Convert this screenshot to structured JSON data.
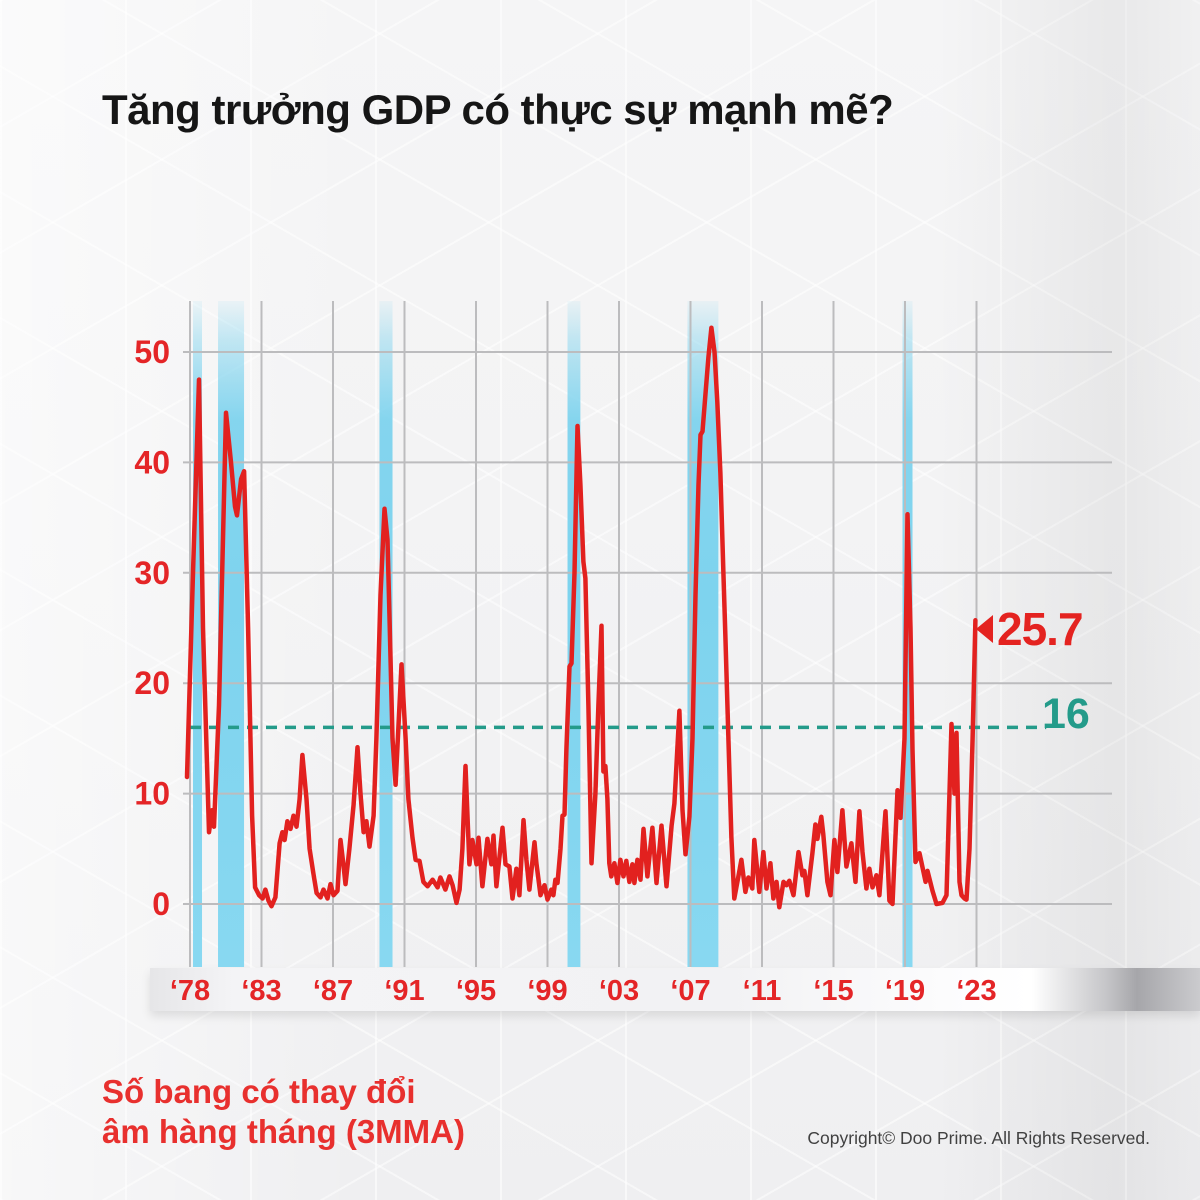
{
  "header": {
    "title": "Tăng trưởng GDP có thực sự mạnh mẽ?"
  },
  "footer": {
    "subtitle_line1": "Số bang có thay đổi",
    "subtitle_line2": "âm hàng tháng (3MMA)",
    "copyright": "Copyright© Doo Prime. All Rights Reserved."
  },
  "colors": {
    "line": "#e2211f",
    "axis_label_red": "#e42527",
    "recession_band_blue": "#7ed3ee",
    "threshold_teal": "#249b8a",
    "gridline_gray": "#bcbcbe",
    "title_black": "#161616",
    "background": "#f2f2f3"
  },
  "chart_data": {
    "type": "line",
    "title": "Tăng trưởng GDP có thực sự mạnh mẽ?",
    "series_label": "Số bang có thay đổi âm hàng tháng (3MMA)",
    "xlabel": "",
    "ylabel": "",
    "grid": true,
    "yticks": [
      0,
      10,
      20,
      30,
      40,
      50
    ],
    "ylim": [
      -5.7,
      54.6
    ],
    "x_ticks": [
      {
        "label": "‘78",
        "year": 1978
      },
      {
        "label": "‘83",
        "year": 1983
      },
      {
        "label": "‘87",
        "year": 1987
      },
      {
        "label": "‘91",
        "year": 1991
      },
      {
        "label": "‘95",
        "year": 1995
      },
      {
        "label": "‘99",
        "year": 1999
      },
      {
        "label": "‘03",
        "year": 2003
      },
      {
        "label": "‘07",
        "year": 2007
      },
      {
        "label": "‘11",
        "year": 2011
      },
      {
        "label": "‘15",
        "year": 2015
      },
      {
        "label": "‘19",
        "year": 2019
      },
      {
        "label": "‘23",
        "year": 2023
      }
    ],
    "threshold": {
      "value": 16,
      "label": "16",
      "line_end_year": 2026.9
    },
    "end_label": {
      "value": 25.7,
      "text": "25.7"
    },
    "recession_bands": [
      [
        1978.21,
        1978.84
      ],
      [
        1979.96,
        1981.78
      ],
      [
        1989.6,
        1990.33
      ],
      [
        2000.12,
        2000.84
      ],
      [
        2006.83,
        2008.56
      ],
      [
        2018.86,
        2019.42
      ]
    ],
    "points": [
      [
        1977.79,
        11.5
      ],
      [
        1978.21,
        30
      ],
      [
        1978.63,
        47.5
      ],
      [
        1978.91,
        25
      ],
      [
        1979.33,
        6.5
      ],
      [
        1979.54,
        8.5
      ],
      [
        1979.68,
        7.0
      ],
      [
        1980.03,
        18
      ],
      [
        1980.52,
        44.5
      ],
      [
        1980.87,
        40
      ],
      [
        1981.15,
        36
      ],
      [
        1981.29,
        35.2
      ],
      [
        1981.57,
        38.5
      ],
      [
        1981.78,
        39.2
      ],
      [
        1982.06,
        25
      ],
      [
        1982.34,
        8
      ],
      [
        1982.55,
        1.5
      ],
      [
        1982.83,
        0.8
      ],
      [
        1983.06,
        0.5
      ],
      [
        1983.22,
        1.3
      ],
      [
        1983.39,
        0.3
      ],
      [
        1983.56,
        -0.2
      ],
      [
        1983.78,
        0.6
      ],
      [
        1984.01,
        5.5
      ],
      [
        1984.17,
        6.5
      ],
      [
        1984.29,
        5.8
      ],
      [
        1984.45,
        7.5
      ],
      [
        1984.62,
        6.8
      ],
      [
        1984.79,
        8.0
      ],
      [
        1984.96,
        7.0
      ],
      [
        1985.13,
        9.5
      ],
      [
        1985.29,
        13.5
      ],
      [
        1985.52,
        9.5
      ],
      [
        1985.69,
        5.0
      ],
      [
        1985.91,
        2.7
      ],
      [
        1986.08,
        1.0
      ],
      [
        1986.3,
        0.6
      ],
      [
        1986.47,
        1.3
      ],
      [
        1986.69,
        0.5
      ],
      [
        1986.86,
        1.8
      ],
      [
        1987.03,
        0.8
      ],
      [
        1987.25,
        1.2
      ],
      [
        1987.42,
        5.8
      ],
      [
        1987.59,
        3.5
      ],
      [
        1987.7,
        1.8
      ],
      [
        1987.92,
        5.0
      ],
      [
        1988.15,
        9.0
      ],
      [
        1988.37,
        14.2
      ],
      [
        1988.54,
        10.0
      ],
      [
        1988.71,
        6.5
      ],
      [
        1988.87,
        7.5
      ],
      [
        1989.04,
        5.2
      ],
      [
        1989.27,
        8.0
      ],
      [
        1989.43,
        15.0
      ],
      [
        1989.66,
        28.0
      ],
      [
        1989.88,
        35.8
      ],
      [
        1990.05,
        33.0
      ],
      [
        1990.16,
        26.0
      ],
      [
        1990.33,
        15.0
      ],
      [
        1990.5,
        10.8
      ],
      [
        1990.66,
        16.0
      ],
      [
        1990.83,
        21.7
      ],
      [
        1991.06,
        15.0
      ],
      [
        1991.22,
        9.5
      ],
      [
        1991.45,
        6.0
      ],
      [
        1991.62,
        4.0
      ],
      [
        1991.84,
        3.9
      ],
      [
        1992.06,
        2.0
      ],
      [
        1992.29,
        1.6
      ],
      [
        1992.57,
        2.2
      ],
      [
        1992.85,
        1.5
      ],
      [
        1993.01,
        2.4
      ],
      [
        1993.29,
        1.3
      ],
      [
        1993.52,
        2.5
      ],
      [
        1993.69,
        1.7
      ],
      [
        1993.91,
        0.1
      ],
      [
        1994.08,
        1.3
      ],
      [
        1994.24,
        5.0
      ],
      [
        1994.41,
        12.5
      ],
      [
        1994.63,
        3.6
      ],
      [
        1994.8,
        5.8
      ],
      [
        1995.03,
        3.6
      ],
      [
        1995.14,
        6.0
      ],
      [
        1995.36,
        1.6
      ],
      [
        1995.64,
        5.9
      ],
      [
        1995.86,
        3.6
      ],
      [
        1995.98,
        6.2
      ],
      [
        1996.14,
        1.6
      ],
      [
        1996.48,
        6.9
      ],
      [
        1996.65,
        3.6
      ],
      [
        1996.87,
        3.4
      ],
      [
        1997.04,
        0.5
      ],
      [
        1997.26,
        3.2
      ],
      [
        1997.43,
        0.8
      ],
      [
        1997.66,
        7.6
      ],
      [
        1997.82,
        4.0
      ],
      [
        1997.99,
        1.3
      ],
      [
        1998.27,
        5.6
      ],
      [
        1998.38,
        3.7
      ],
      [
        1998.61,
        0.8
      ],
      [
        1998.83,
        1.7
      ],
      [
        1999.0,
        0.4
      ],
      [
        1999.22,
        1.3
      ],
      [
        1999.33,
        0.8
      ],
      [
        1999.44,
        2.2
      ],
      [
        1999.56,
        1.9
      ],
      [
        1999.73,
        5.0
      ],
      [
        1999.84,
        8.0
      ],
      [
        1999.95,
        8.1
      ],
      [
        2000.06,
        14.0
      ],
      [
        2000.23,
        21.5
      ],
      [
        2000.34,
        21.8
      ],
      [
        2000.51,
        30.0
      ],
      [
        2000.68,
        43.3
      ],
      [
        2000.84,
        38.0
      ],
      [
        2001.01,
        31.0
      ],
      [
        2001.12,
        29.5
      ],
      [
        2001.29,
        18.0
      ],
      [
        2001.46,
        3.7
      ],
      [
        2001.68,
        10.0
      ],
      [
        2001.85,
        18.0
      ],
      [
        2002.02,
        25.2
      ],
      [
        2002.13,
        12.0
      ],
      [
        2002.24,
        12.5
      ],
      [
        2002.35,
        9.5
      ],
      [
        2002.46,
        3.7
      ],
      [
        2002.57,
        2.5
      ],
      [
        2002.74,
        3.7
      ],
      [
        2002.91,
        1.9
      ],
      [
        2003.08,
        4.0
      ],
      [
        2003.25,
        2.5
      ],
      [
        2003.41,
        3.9
      ],
      [
        2003.58,
        2.0
      ],
      [
        2003.75,
        3.6
      ],
      [
        2003.86,
        1.9
      ],
      [
        2004.03,
        4.0
      ],
      [
        2004.2,
        2.2
      ],
      [
        2004.37,
        6.8
      ],
      [
        2004.59,
        2.5
      ],
      [
        2004.87,
        6.9
      ],
      [
        2005.1,
        1.9
      ],
      [
        2005.38,
        7.1
      ],
      [
        2005.66,
        1.6
      ],
      [
        2005.94,
        7.1
      ],
      [
        2006.1,
        9.1
      ],
      [
        2006.38,
        17.5
      ],
      [
        2006.55,
        8.5
      ],
      [
        2006.72,
        4.5
      ],
      [
        2006.94,
        7.9
      ],
      [
        2007.11,
        15.0
      ],
      [
        2007.28,
        28.0
      ],
      [
        2007.45,
        38.0
      ],
      [
        2007.56,
        42.5
      ],
      [
        2007.67,
        42.8
      ],
      [
        2007.83,
        46.0
      ],
      [
        2008.0,
        49.5
      ],
      [
        2008.17,
        52.2
      ],
      [
        2008.34,
        50.0
      ],
      [
        2008.5,
        45.5
      ],
      [
        2008.67,
        39.0
      ],
      [
        2008.84,
        30.0
      ],
      [
        2008.95,
        24.2
      ],
      [
        2009.12,
        15.0
      ],
      [
        2009.29,
        6.0
      ],
      [
        2009.45,
        0.5
      ],
      [
        2009.68,
        2.5
      ],
      [
        2009.85,
        4.0
      ],
      [
        2010.07,
        1.1
      ],
      [
        2010.24,
        2.4
      ],
      [
        2010.46,
        1.4
      ],
      [
        2010.57,
        5.8
      ],
      [
        2010.85,
        1.1
      ],
      [
        2011.08,
        4.7
      ],
      [
        2011.25,
        1.4
      ],
      [
        2011.47,
        3.7
      ],
      [
        2011.64,
        0.5
      ],
      [
        2011.81,
        2.0
      ],
      [
        2011.97,
        -0.3
      ],
      [
        2012.2,
        2.0
      ],
      [
        2012.37,
        1.7
      ],
      [
        2012.53,
        2.1
      ],
      [
        2012.76,
        0.8
      ],
      [
        2013.04,
        4.7
      ],
      [
        2013.26,
        2.6
      ],
      [
        2013.37,
        3.0
      ],
      [
        2013.54,
        0.8
      ],
      [
        2013.82,
        4.6
      ],
      [
        2013.99,
        7.2
      ],
      [
        2014.1,
        5.9
      ],
      [
        2014.32,
        7.9
      ],
      [
        2014.43,
        6.3
      ],
      [
        2014.66,
        2.0
      ],
      [
        2014.83,
        0.8
      ],
      [
        2015.05,
        5.8
      ],
      [
        2015.22,
        2.9
      ],
      [
        2015.5,
        8.5
      ],
      [
        2015.72,
        3.4
      ],
      [
        2016.0,
        5.5
      ],
      [
        2016.23,
        2.0
      ],
      [
        2016.45,
        8.4
      ],
      [
        2016.62,
        4.7
      ],
      [
        2016.84,
        1.4
      ],
      [
        2017.01,
        3.2
      ],
      [
        2017.18,
        1.5
      ],
      [
        2017.4,
        2.6
      ],
      [
        2017.57,
        0.8
      ],
      [
        2017.91,
        8.4
      ],
      [
        2018.13,
        0.3
      ],
      [
        2018.3,
        0.0
      ],
      [
        2018.58,
        10.3
      ],
      [
        2018.75,
        7.8
      ],
      [
        2018.97,
        15.0
      ],
      [
        2019.14,
        35.3
      ],
      [
        2019.31,
        25.0
      ],
      [
        2019.42,
        14.0
      ],
      [
        2019.59,
        3.8
      ],
      [
        2019.81,
        4.6
      ],
      [
        2020.15,
        2.0
      ],
      [
        2020.26,
        3.0
      ],
      [
        2020.54,
        1.2
      ],
      [
        2020.76,
        0.0
      ],
      [
        2021.1,
        0.1
      ],
      [
        2021.32,
        0.8
      ],
      [
        2021.6,
        16.3
      ],
      [
        2021.77,
        10.0
      ],
      [
        2021.88,
        15.5
      ],
      [
        2022.05,
        2.0
      ],
      [
        2022.16,
        0.8
      ],
      [
        2022.33,
        0.5
      ],
      [
        2022.44,
        0.4
      ],
      [
        2022.61,
        5.0
      ],
      [
        2022.78,
        15.0
      ],
      [
        2022.94,
        25.7
      ]
    ]
  }
}
